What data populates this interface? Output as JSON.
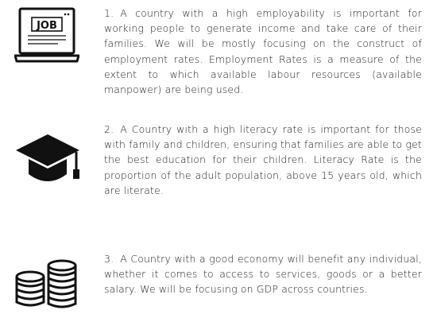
{
  "items": [
    {
      "number": "1.",
      "icon": "laptop-job-icon",
      "icon_label": "JOB",
      "text": "A country with a high employability is important for working people to generate income and take care of their families. We will be mostly focusing on the construct of employment rates. Employment Rates is a measure of the extent to which available labour resources (available manpower) are being used."
    },
    {
      "number": "2.",
      "icon": "graduation-cap-icon",
      "text": "A Country with a high literacy rate is important for those with family and children, ensuring that families are able to get the best education for their children. Literacy Rate is the proportion of the adult population, above 15 years old, which are literate."
    },
    {
      "number": "3.",
      "icon": "coin-stacks-icon",
      "text": "A Country with a good economy will benefit any individual, whether it comes to access to services, goods or a better salary. We will be focusing on GDP across countries."
    }
  ]
}
